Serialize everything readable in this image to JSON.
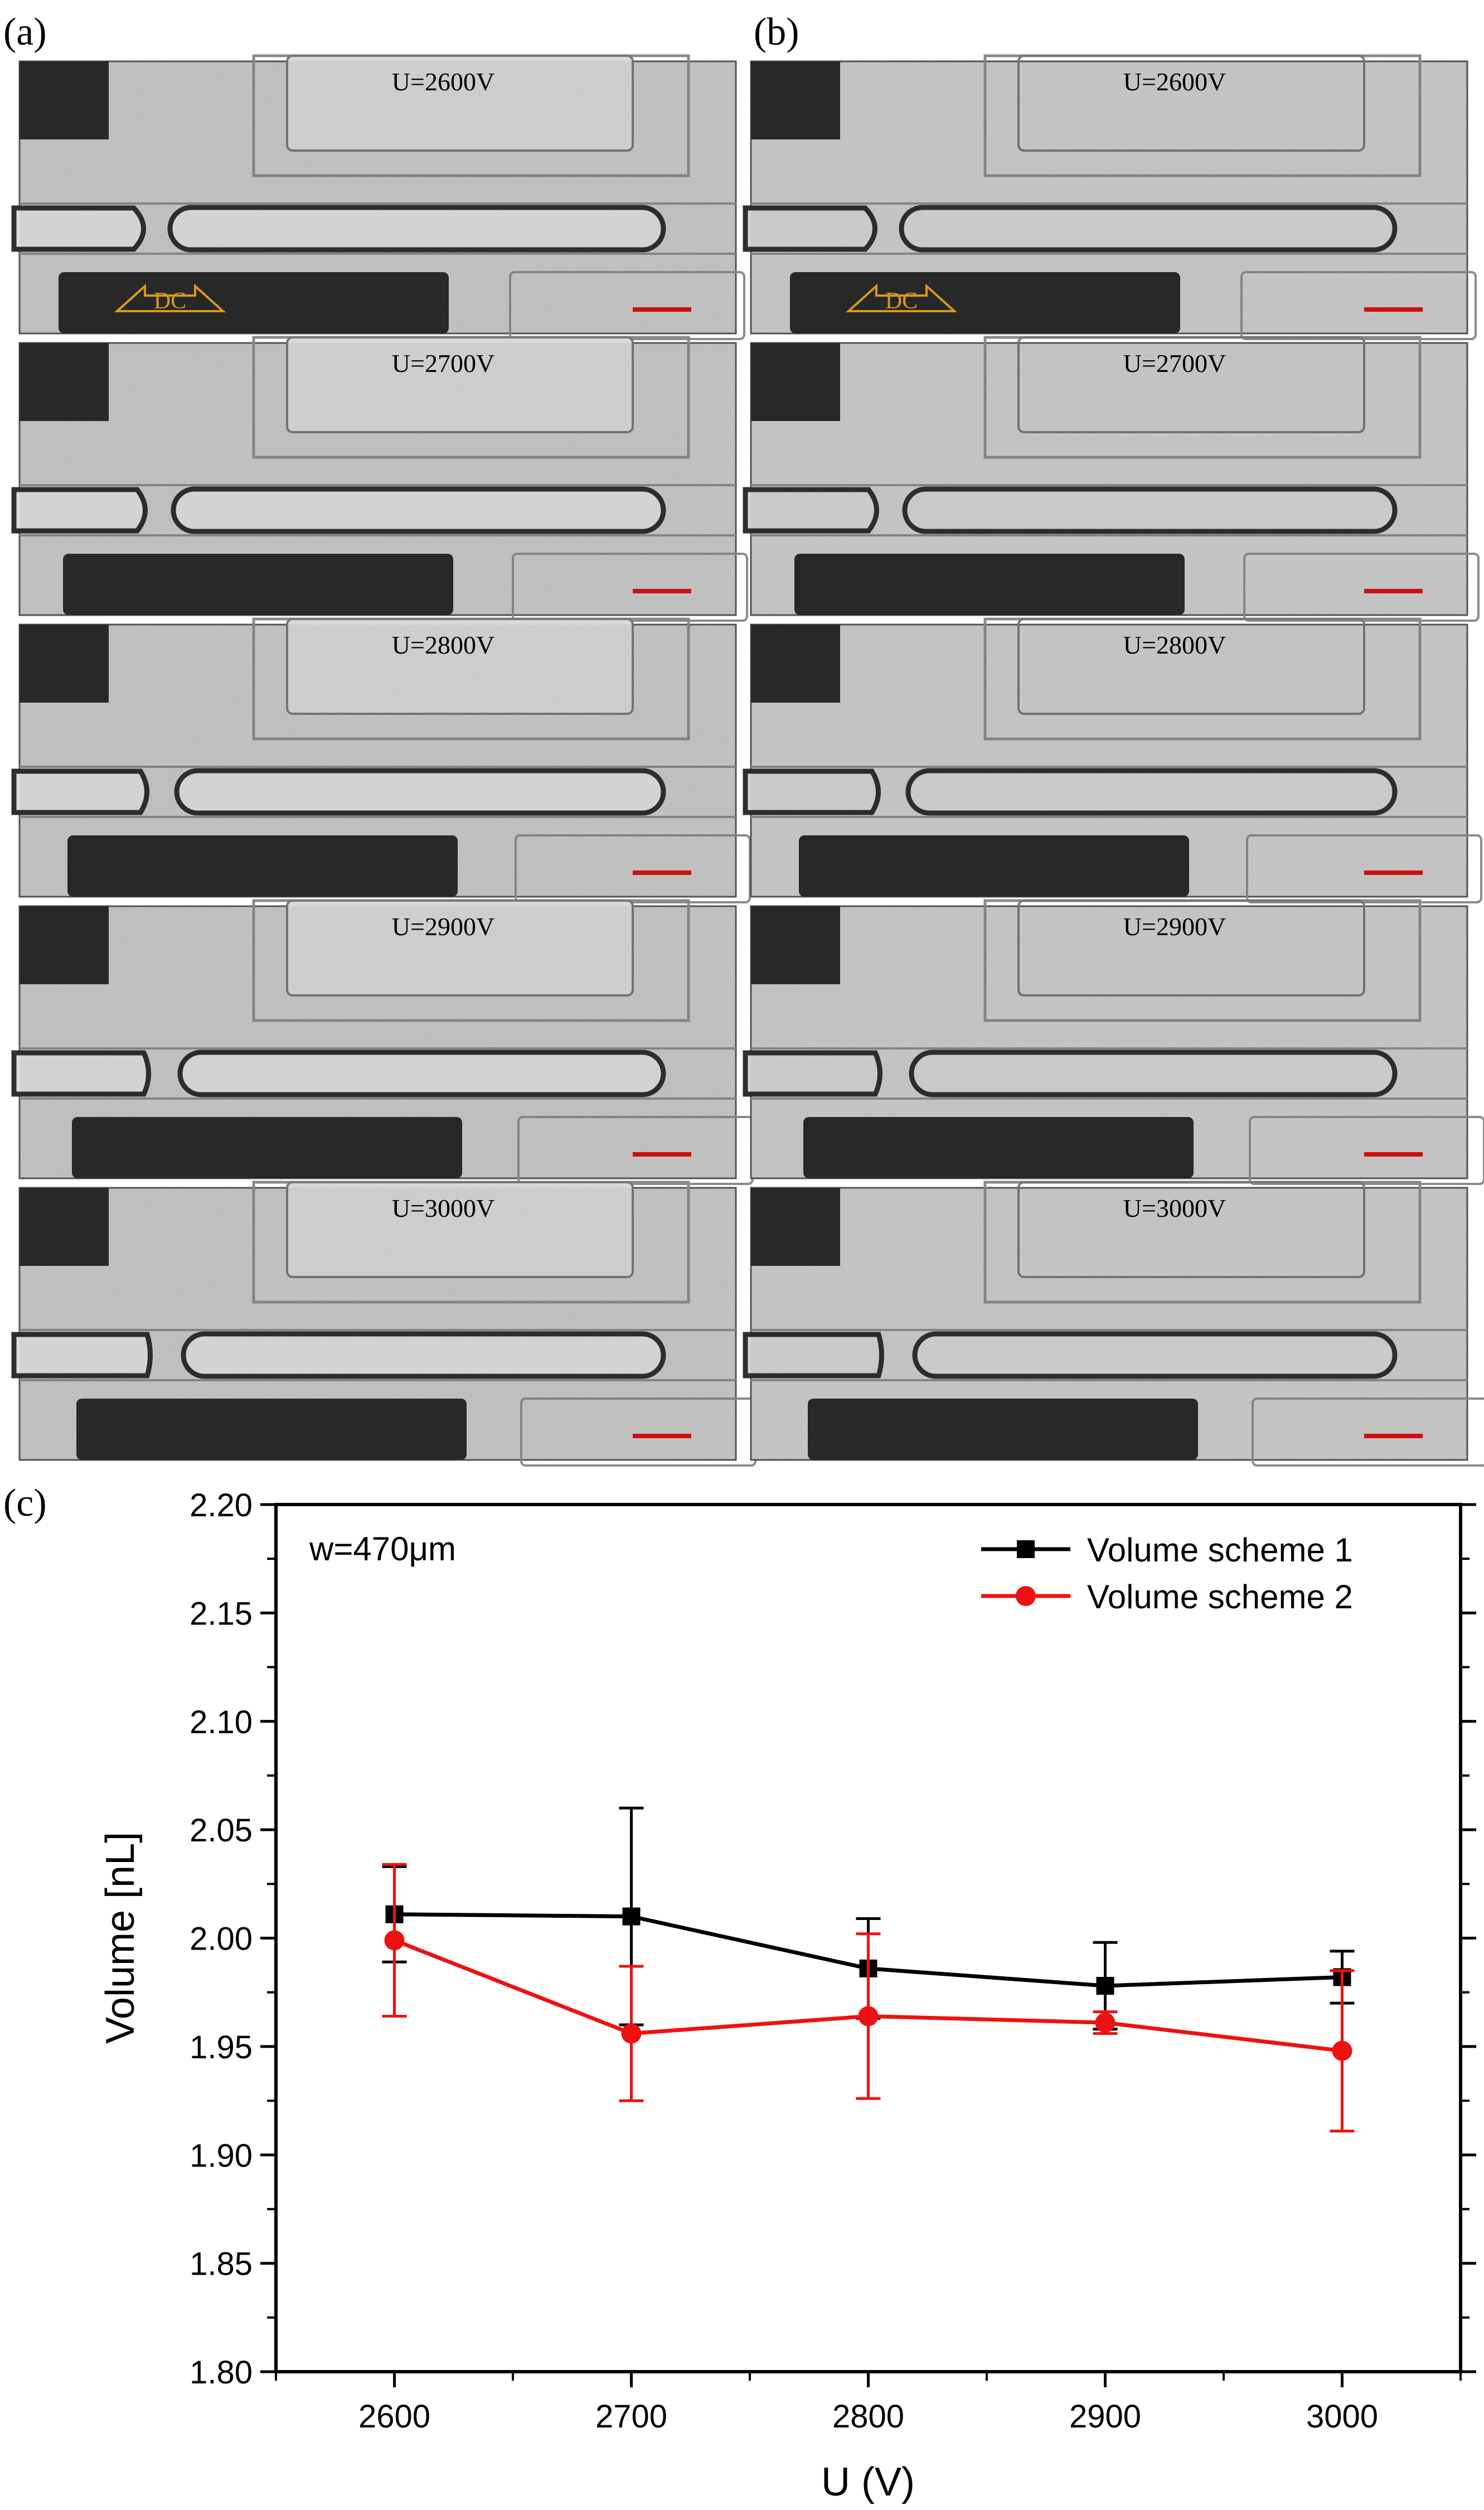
{
  "panels": {
    "a": {
      "label": "(a)",
      "frames": [
        {
          "voltage": "U=2600V",
          "has_dc": true
        },
        {
          "voltage": "U=2700V",
          "has_dc": false
        },
        {
          "voltage": "U=2800V",
          "has_dc": false
        },
        {
          "voltage": "U=2900V",
          "has_dc": false
        },
        {
          "voltage": "U=3000V",
          "has_dc": false
        }
      ]
    },
    "b": {
      "label": "(b)",
      "frames": [
        {
          "voltage": "U=2600V",
          "has_dc": true
        },
        {
          "voltage": "U=2700V",
          "has_dc": false
        },
        {
          "voltage": "U=2800V",
          "has_dc": false
        },
        {
          "voltage": "U=2900V",
          "has_dc": false
        },
        {
          "voltage": "U=3000V",
          "has_dc": false
        }
      ]
    },
    "dc_label": "DC",
    "colors": {
      "frame_bg_a": "#c9c9c9",
      "frame_bg_b": "#cdcdcd",
      "dark_block": "#2a2a2a",
      "scale_bar": "#cc1010",
      "dc_outline": "#d99a1a"
    }
  },
  "chart_label": "(c)",
  "chart_data": {
    "type": "line",
    "annotation": "w=470μm",
    "xlabel": "U (V)",
    "ylabel": "Volume [nL]",
    "xlim": [
      2550,
      3050
    ],
    "ylim": [
      1.8,
      2.2
    ],
    "xticks": [
      2600,
      2700,
      2800,
      2900,
      3000
    ],
    "yticks": [
      1.8,
      1.85,
      1.9,
      1.95,
      2.0,
      2.05,
      2.1,
      2.15,
      2.2
    ],
    "ytick_labels": [
      "1.80",
      "1.85",
      "1.90",
      "1.95",
      "2.00",
      "2.05",
      "2.10",
      "2.15",
      "2.20"
    ],
    "legend_position": "top-right",
    "grid": false,
    "x": [
      2600,
      2700,
      2800,
      2900,
      3000
    ],
    "series": [
      {
        "name": "Volume scheme 1",
        "color": "#000000",
        "marker": "square",
        "values": [
          2.011,
          2.01,
          1.986,
          1.978,
          1.982
        ],
        "err": [
          0.022,
          0.05,
          0.023,
          0.02,
          0.012
        ]
      },
      {
        "name": "Volume scheme 2",
        "color": "#ee1111",
        "marker": "circle",
        "values": [
          1.999,
          1.956,
          1.964,
          1.961,
          1.948
        ],
        "err": [
          0.035,
          0.031,
          0.038,
          0.005,
          0.037
        ]
      }
    ]
  }
}
